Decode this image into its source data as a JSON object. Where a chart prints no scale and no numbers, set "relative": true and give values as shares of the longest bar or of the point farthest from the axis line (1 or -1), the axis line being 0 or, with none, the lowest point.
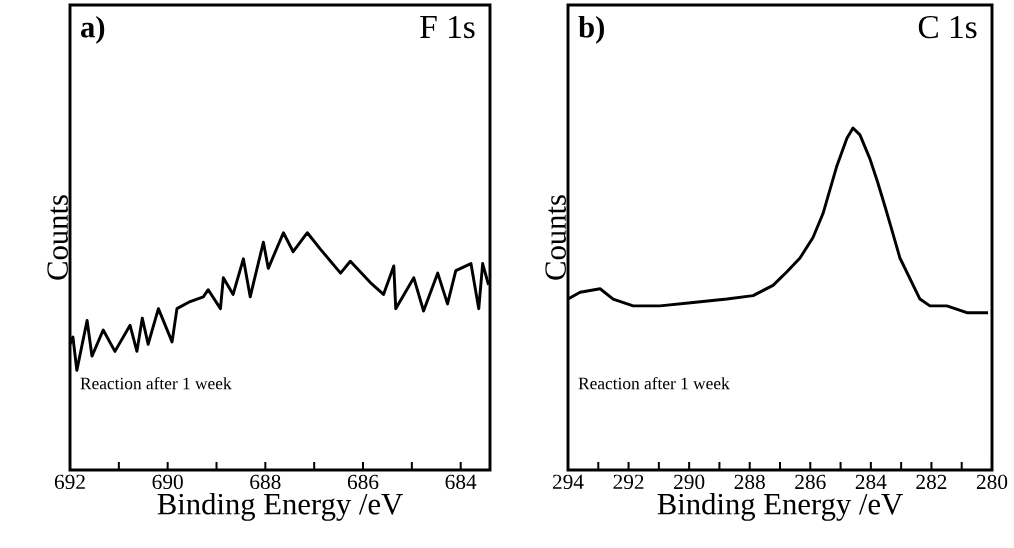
{
  "chart_data": [
    {
      "type": "line",
      "relative": true,
      "xlabel": "Binding Energy /eV",
      "ylabel": "Counts",
      "xlim": [
        692,
        683.4
      ],
      "xticks": [
        692,
        {
          "value": 691,
          "label": null
        },
        690,
        {
          "value": 689,
          "label": null
        },
        688,
        {
          "value": 687,
          "label": null
        },
        686,
        {
          "value": 685,
          "label": null
        },
        684
      ],
      "annotations": [
        "**a)**",
        "F 1s",
        "Reaction after 1 week"
      ],
      "series": [
        {
          "color": "#000000",
          "x": [
            692.0,
            691.94,
            691.86,
            691.65,
            691.55,
            691.32,
            691.08,
            690.77,
            690.63,
            690.52,
            690.4,
            690.19,
            689.91,
            689.81,
            689.54,
            689.27,
            689.17,
            688.92,
            688.86,
            688.66,
            688.45,
            688.31,
            688.04,
            687.94,
            687.63,
            687.43,
            687.14,
            686.87,
            686.46,
            686.26,
            685.85,
            685.58,
            685.37,
            685.33,
            684.96,
            684.76,
            684.47,
            684.27,
            684.1,
            683.79,
            683.63,
            683.55,
            683.43
          ],
          "values": [
            0.53,
            0.56,
            0.42,
            0.63,
            0.48,
            0.59,
            0.5,
            0.61,
            0.5,
            0.64,
            0.53,
            0.68,
            0.54,
            0.68,
            0.71,
            0.73,
            0.76,
            0.68,
            0.81,
            0.74,
            0.89,
            0.73,
            0.96,
            0.85,
            1.0,
            0.92,
            1.0,
            0.93,
            0.83,
            0.88,
            0.79,
            0.74,
            0.86,
            0.68,
            0.81,
            0.67,
            0.83,
            0.7,
            0.84,
            0.87,
            0.68,
            0.87,
            0.78
          ]
        }
      ]
    },
    {
      "type": "line",
      "relative": true,
      "xlabel": "Binding Energy /eV",
      "ylabel": "Counts",
      "xlim": [
        294,
        280
      ],
      "xticks": [
        294,
        {
          "value": 293,
          "label": null
        },
        292,
        {
          "value": 291,
          "label": null
        },
        290,
        {
          "value": 289,
          "label": null
        },
        288,
        {
          "value": 287,
          "label": null
        },
        286,
        {
          "value": 285,
          "label": null
        },
        284,
        {
          "value": 283,
          "label": null
        },
        282,
        {
          "value": 281,
          "label": null
        },
        280
      ],
      "annotations": [
        "**b)**",
        "C 1s",
        "Reaction after 1 week"
      ],
      "series": [
        {
          "color": "#000000",
          "x": [
            294.0,
            293.6,
            292.94,
            292.51,
            291.85,
            290.96,
            289.87,
            288.75,
            287.89,
            287.23,
            286.77,
            286.34,
            285.91,
            285.58,
            285.35,
            285.12,
            284.79,
            284.59,
            284.36,
            284.03,
            283.77,
            283.53,
            283.3,
            283.04,
            282.71,
            282.38,
            282.05,
            281.49,
            280.83,
            280.13
          ],
          "values": [
            0.5,
            0.52,
            0.53,
            0.5,
            0.48,
            0.48,
            0.49,
            0.5,
            0.51,
            0.54,
            0.58,
            0.62,
            0.68,
            0.75,
            0.82,
            0.89,
            0.97,
            1.0,
            0.98,
            0.91,
            0.84,
            0.77,
            0.7,
            0.62,
            0.56,
            0.5,
            0.48,
            0.48,
            0.46,
            0.46
          ]
        }
      ]
    }
  ]
}
